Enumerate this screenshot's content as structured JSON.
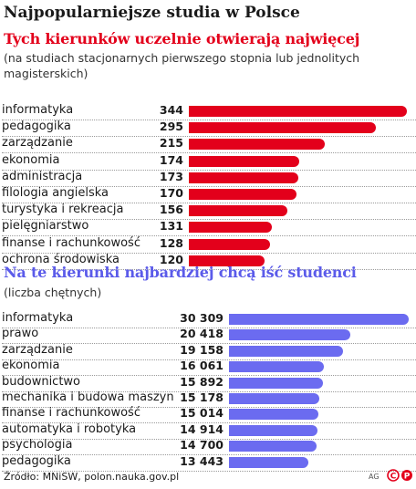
{
  "title": "Najpopularniejsze studia w Polsce",
  "footer": "Źródło: MNiSW, polon.nauka.gov.pl",
  "credit": "AG",
  "colors": {
    "red": "#e3001b",
    "purple": "#6b6bf0"
  },
  "chart_data": [
    {
      "type": "bar",
      "title": "Tych kierunków uczelnie otwierają najwięcej",
      "subtitle": "(na studiach stacjonarnych pierwszego stopnia lub jednolitych magisterskich)",
      "categories": [
        "informatyka",
        "pedagogika",
        "zarządzanie",
        "ekonomia",
        "administracja",
        "filologia angielska",
        "turystyka i rekreacja",
        "pielęgniarstwo",
        "finanse i rachunkowość",
        "ochrona środowiska"
      ],
      "values": [
        344,
        295,
        215,
        174,
        173,
        170,
        156,
        131,
        128,
        120
      ],
      "value_labels": [
        "344",
        "295",
        "215",
        "174",
        "173",
        "170",
        "156",
        "131",
        "128",
        "120"
      ],
      "color": "#e3001b"
    },
    {
      "type": "bar",
      "title": "Na te kierunki najbardziej chcą iść studenci",
      "subtitle": "(liczba chętnych)",
      "categories": [
        "informatyka",
        "prawo",
        "zarządzanie",
        "ekonomia",
        "budownictwo",
        "mechanika i budowa maszyn",
        "finanse i rachunkowość",
        "automatyka i robotyka",
        "psychologia",
        "pedagogika"
      ],
      "values": [
        30309,
        20418,
        19158,
        16061,
        15892,
        15178,
        15014,
        14914,
        14700,
        13443
      ],
      "value_labels": [
        "30 309",
        "20 418",
        "19 158",
        "16 061",
        "15 892",
        "15 178",
        "15 014",
        "14 914",
        "14 700",
        "13 443"
      ],
      "color": "#6b6bf0"
    }
  ]
}
